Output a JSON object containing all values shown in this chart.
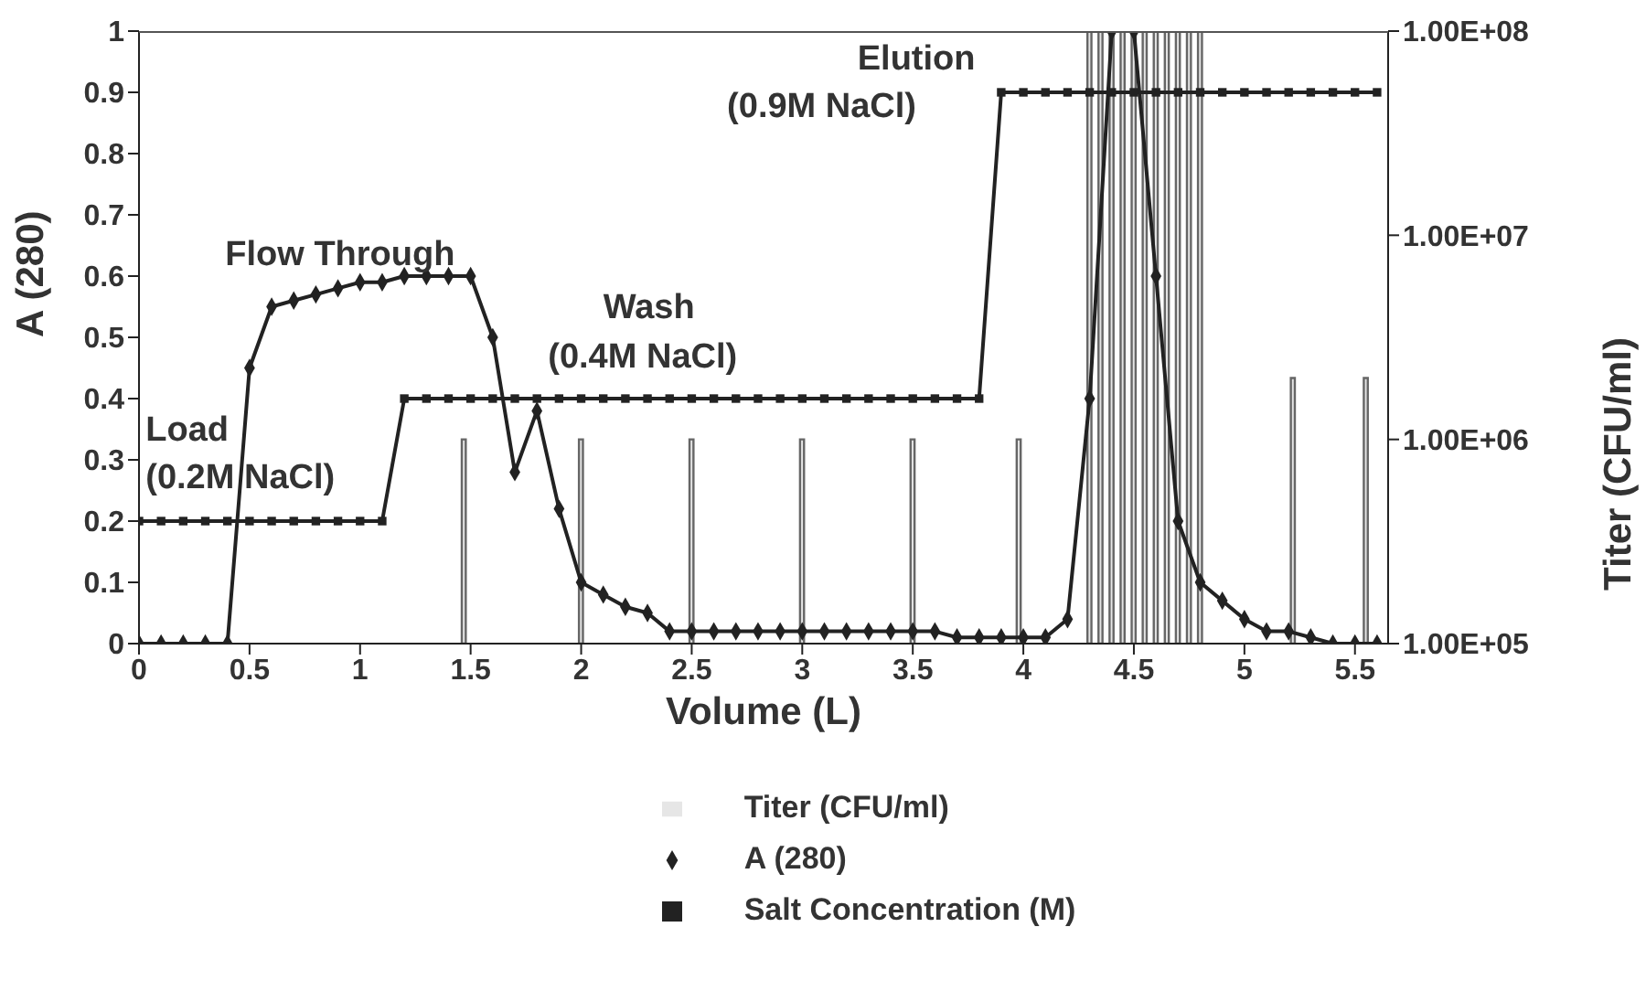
{
  "chart_data": {
    "type": "line",
    "xlabel": "Volume (L)",
    "ylabel": "A (280)",
    "y2label": "Titer (CFU/ml)",
    "x": [
      0,
      0.1,
      0.2,
      0.3,
      0.4,
      0.5,
      0.6,
      0.7,
      0.8,
      0.9,
      1.0,
      1.1,
      1.2,
      1.3,
      1.4,
      1.5,
      1.6,
      1.7,
      1.8,
      1.9,
      2.0,
      2.1,
      2.2,
      2.3,
      2.4,
      2.5,
      2.6,
      2.7,
      2.8,
      2.9,
      3.0,
      3.1,
      3.2,
      3.3,
      3.4,
      3.5,
      3.6,
      3.7,
      3.8,
      3.9,
      4.0,
      4.1,
      4.2,
      4.3,
      4.4,
      4.5,
      4.6,
      4.7,
      4.8,
      4.9,
      5.0,
      5.1,
      5.2,
      5.3,
      5.4,
      5.5,
      5.6
    ],
    "series": [
      {
        "name": "Titer (CFU/ml)",
        "type": "bar",
        "axis": "y2",
        "color": "#e6e6e6",
        "x": [
          1.47,
          2.0,
          2.5,
          3.0,
          3.5,
          3.98,
          4.3,
          4.35,
          4.4,
          4.45,
          4.5,
          4.55,
          4.6,
          4.65,
          4.7,
          4.75,
          4.8,
          5.22,
          5.55
        ],
        "values": [
          1000000,
          1000000,
          1000000,
          1000000,
          1000000,
          1000000,
          100000000,
          100000000,
          100000000,
          100000000,
          100000000,
          100000000,
          100000000,
          100000000,
          100000000,
          100000000,
          100000000,
          2000000,
          2000000
        ]
      },
      {
        "name": "A (280)",
        "color": "#222222",
        "marker": "diamond",
        "values": [
          0,
          0,
          0,
          0,
          0,
          0.45,
          0.55,
          0.56,
          0.57,
          0.58,
          0.59,
          0.59,
          0.6,
          0.6,
          0.6,
          0.6,
          0.5,
          0.28,
          0.38,
          0.22,
          0.1,
          0.08,
          0.06,
          0.05,
          0.02,
          0.02,
          0.02,
          0.02,
          0.02,
          0.02,
          0.02,
          0.02,
          0.02,
          0.02,
          0.02,
          0.02,
          0.02,
          0.01,
          0.01,
          0.01,
          0.01,
          0.01,
          0.04,
          0.4,
          1,
          1,
          0.6,
          0.2,
          0.1,
          0.07,
          0.04,
          0.02,
          0.02,
          0.01,
          0,
          0,
          0
        ]
      },
      {
        "name": "Salt Concentration (M)",
        "color": "#222222",
        "marker": "square",
        "values": [
          0.2,
          0.2,
          0.2,
          0.2,
          0.2,
          0.2,
          0.2,
          0.2,
          0.2,
          0.2,
          0.2,
          0.2,
          0.4,
          0.4,
          0.4,
          0.4,
          0.4,
          0.4,
          0.4,
          0.4,
          0.4,
          0.4,
          0.4,
          0.4,
          0.4,
          0.4,
          0.4,
          0.4,
          0.4,
          0.4,
          0.4,
          0.4,
          0.4,
          0.4,
          0.4,
          0.4,
          0.4,
          0.4,
          0.4,
          0.9,
          0.9,
          0.9,
          0.9,
          0.9,
          0.9,
          0.9,
          0.9,
          0.9,
          0.9,
          0.9,
          0.9,
          0.9,
          0.9,
          0.9,
          0.9,
          0.9,
          0.9
        ]
      }
    ],
    "xlim": [
      0,
      5.65
    ],
    "xticks": [
      0,
      0.5,
      1,
      1.5,
      2,
      2.5,
      3,
      3.5,
      4,
      4.5,
      5,
      5.5
    ],
    "ylim": [
      0,
      1
    ],
    "yticks": [
      0,
      0.1,
      0.2,
      0.3,
      0.4,
      0.5,
      0.6,
      0.7,
      0.8,
      0.9,
      1
    ],
    "y2lim": [
      100000,
      100000000
    ],
    "y2ticks": [
      {
        "value": 100000,
        "label": "1.00E+05"
      },
      {
        "value": 1000000,
        "label": "1.00E+06"
      },
      {
        "value": 10000000,
        "label": "1.00E+07"
      },
      {
        "value": 100000000,
        "label": "1.00E+08"
      }
    ],
    "log": "y2",
    "legend": "bottom",
    "annotations": [
      "Load",
      "(0.2M NaCl)",
      "Flow Through",
      "Wash",
      "(0.4M NaCl)",
      "Elution",
      "(0.9M NaCl)"
    ]
  }
}
